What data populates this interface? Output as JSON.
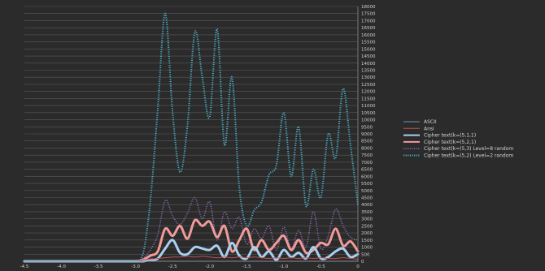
{
  "chart_data": {
    "type": "line",
    "title": "",
    "xlabel": "",
    "ylabel": "",
    "xlim": [
      -4.5,
      0
    ],
    "ylim": [
      0,
      18000
    ],
    "x_ticks": [
      "-4.5",
      "-4.0",
      "-3.5",
      "-3.0",
      "-2.5",
      "-2.0",
      "-1.5",
      "-1.0",
      "-0.5",
      "0"
    ],
    "y_ticks": [
      "0",
      "500",
      "1000",
      "1500",
      "2000",
      "2500",
      "3000",
      "3500",
      "4000",
      "4500",
      "5000",
      "5500",
      "6000",
      "6500",
      "7000",
      "7500",
      "8000",
      "8500",
      "9000",
      "9500",
      "10000",
      "10500",
      "11000",
      "11500",
      "12000",
      "12500",
      "13000",
      "13500",
      "14000",
      "14500",
      "15000",
      "15500",
      "16000",
      "16500",
      "17000",
      "17500",
      "18000"
    ],
    "y_axis_position": "right",
    "grid": "horizontal",
    "legend_position": "right",
    "x": [
      -4.5,
      -4.25,
      -4.0,
      -3.75,
      -3.5,
      -3.25,
      -3.0,
      -2.9,
      -2.8,
      -2.7,
      -2.6,
      -2.5,
      -2.4,
      -2.3,
      -2.2,
      -2.1,
      -2.0,
      -1.9,
      -1.8,
      -1.7,
      -1.6,
      -1.5,
      -1.4,
      -1.3,
      -1.2,
      -1.1,
      -1.0,
      -0.9,
      -0.8,
      -0.7,
      -0.6,
      -0.5,
      -0.4,
      -0.3,
      -0.2,
      -0.1,
      0.0
    ],
    "series": [
      {
        "name": "ASCII",
        "color": "#6f8fc9",
        "style": "solid",
        "width": 1,
        "values": [
          0,
          0,
          0,
          0,
          0,
          0,
          0,
          0,
          0,
          0,
          0,
          0,
          0,
          0,
          0,
          0,
          0,
          0,
          0,
          0,
          0,
          0,
          0,
          0,
          0,
          0,
          0,
          0,
          0,
          0,
          0,
          0,
          0,
          0,
          0,
          0,
          0
        ]
      },
      {
        "name": "Ansi",
        "color": "#c0504d",
        "style": "solid",
        "width": 1,
        "values": [
          0,
          0,
          0,
          0,
          0,
          0,
          0,
          100,
          150,
          200,
          250,
          300,
          300,
          350,
          300,
          350,
          300,
          250,
          300,
          250,
          300,
          250,
          300,
          250,
          200,
          250,
          200,
          250,
          200,
          250,
          200,
          250,
          200,
          200,
          250,
          200,
          150
        ]
      },
      {
        "name": "Cipher text(k=(5,1,1)",
        "color": "#a8d0f0",
        "style": "solid",
        "width": 3,
        "values": [
          0,
          0,
          0,
          0,
          0,
          0,
          0,
          0,
          100,
          200,
          900,
          1500,
          600,
          500,
          1000,
          900,
          800,
          1100,
          300,
          1300,
          400,
          200,
          1000,
          300,
          700,
          100,
          800,
          300,
          600,
          200,
          1000,
          200,
          300,
          700,
          900,
          300,
          500
        ]
      },
      {
        "name": "Cipher text(k=(5,2,1)",
        "color": "#f29a9a",
        "style": "solid",
        "width": 3,
        "values": [
          0,
          0,
          0,
          0,
          0,
          0,
          0,
          100,
          400,
          700,
          2300,
          1800,
          2500,
          1600,
          2900,
          2500,
          2800,
          1700,
          2500,
          700,
          1500,
          2300,
          800,
          1500,
          800,
          1300,
          1800,
          800,
          1500,
          600,
          800,
          1300,
          1200,
          2300,
          1100,
          1400,
          700
        ]
      },
      {
        "name": "Cipher text(k=(5,3) Level=8 random",
        "color": "#8c6bb1",
        "style": "dotted",
        "width": 1.5,
        "values": [
          0,
          0,
          0,
          0,
          0,
          0,
          0,
          200,
          800,
          1900,
          4300,
          3200,
          2600,
          3400,
          4500,
          3000,
          4200,
          1500,
          3500,
          2300,
          3100,
          1200,
          2300,
          1600,
          2500,
          800,
          2400,
          900,
          2200,
          1000,
          3500,
          900,
          1800,
          3700,
          2500,
          1700,
          1500
        ]
      },
      {
        "name": "Cipher text(k=(5,2) Level=2 random",
        "color": "#4bacc6",
        "style": "dotted",
        "width": 2,
        "values": [
          0,
          0,
          0,
          0,
          0,
          0,
          0,
          500,
          4300,
          10800,
          17500,
          10500,
          6300,
          9600,
          16200,
          13000,
          10200,
          16400,
          8200,
          13000,
          5200,
          2500,
          3600,
          4200,
          6100,
          6800,
          10500,
          6000,
          9500,
          3900,
          6500,
          4500,
          9000,
          7300,
          12200,
          8200,
          4000
        ]
      }
    ]
  }
}
